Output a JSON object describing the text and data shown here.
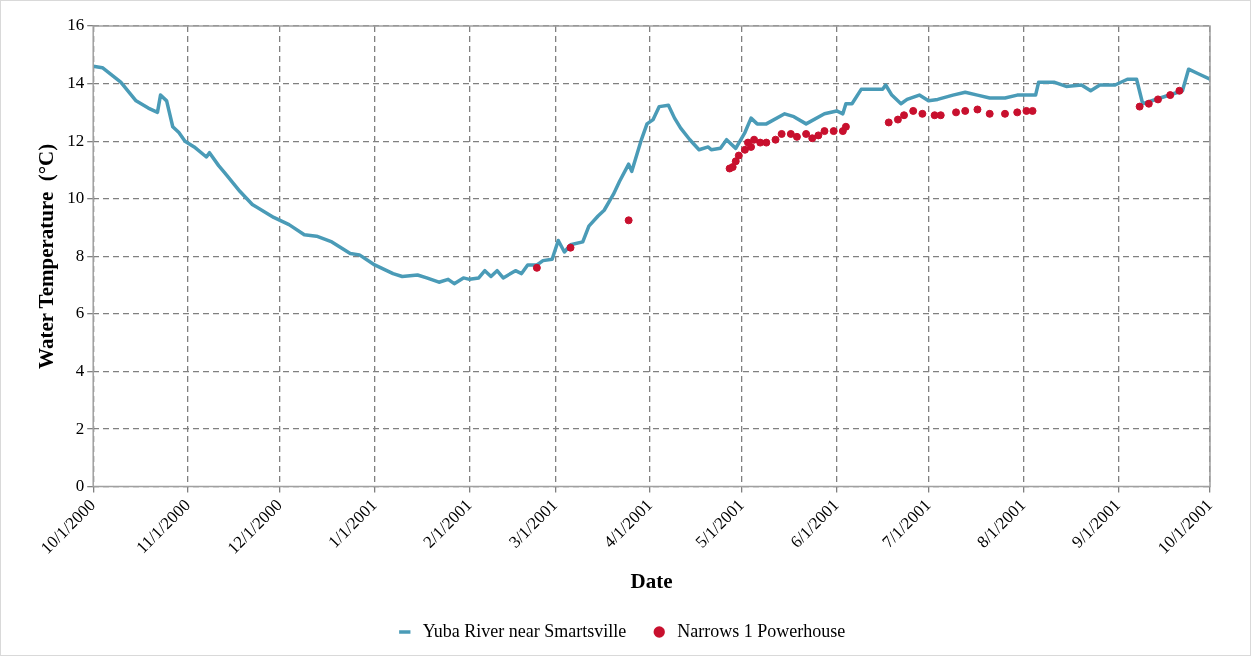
{
  "chart_data": {
    "type": "line",
    "xlabel": "Date",
    "ylabel": "Water Temperature  (°C)",
    "xlim": [
      "2000-10-01",
      "2001-10-01"
    ],
    "xticks": [
      {
        "value": "2000-10-01",
        "label": "10/1/2000"
      },
      {
        "value": "2000-11-01",
        "label": "11/1/2000"
      },
      {
        "value": "2000-12-01",
        "label": "12/1/2000"
      },
      {
        "value": "2001-01-01",
        "label": "1/1/2001"
      },
      {
        "value": "2001-02-01",
        "label": "2/1/2001"
      },
      {
        "value": "2001-03-01",
        "label": "3/1/2001"
      },
      {
        "value": "2001-04-01",
        "label": "4/1/2001"
      },
      {
        "value": "2001-05-01",
        "label": "5/1/2001"
      },
      {
        "value": "2001-06-01",
        "label": "6/1/2001"
      },
      {
        "value": "2001-07-01",
        "label": "7/1/2001"
      },
      {
        "value": "2001-08-01",
        "label": "8/1/2001"
      },
      {
        "value": "2001-09-01",
        "label": "9/1/2001"
      },
      {
        "value": "2001-10-01",
        "label": "10/1/2001"
      }
    ],
    "ylim": [
      0,
      16
    ],
    "yticks": [
      0,
      2,
      4,
      6,
      8,
      10,
      12,
      14,
      16
    ],
    "grid": true,
    "legend": "bottom",
    "series": [
      {
        "name": "Yuba River near Smartsville",
        "marker": "none",
        "color": "#4a9bb7",
        "x": [
          "2000-10-01",
          "2000-10-04",
          "2000-10-10",
          "2000-10-15",
          "2000-10-19",
          "2000-10-22",
          "2000-10-23",
          "2000-10-25",
          "2000-10-27",
          "2000-10-29",
          "2000-10-31",
          "2000-11-03",
          "2000-11-07",
          "2000-11-08",
          "2000-11-11",
          "2000-11-13",
          "2000-11-18",
          "2000-11-22",
          "2000-11-29",
          "2000-12-04",
          "2000-12-09",
          "2000-12-13",
          "2000-12-18",
          "2000-12-24",
          "2000-12-27",
          "2001-01-01",
          "2001-01-07",
          "2001-01-10",
          "2001-01-15",
          "2001-01-18",
          "2001-01-22",
          "2001-01-25",
          "2001-01-27",
          "2001-01-30",
          "2001-02-01",
          "2001-02-04",
          "2001-02-06",
          "2001-02-08",
          "2001-02-10",
          "2001-02-12",
          "2001-02-16",
          "2001-02-18",
          "2001-02-20",
          "2001-02-23",
          "2001-02-25",
          "2001-02-28",
          "2001-03-02",
          "2001-03-04",
          "2001-03-06",
          "2001-03-10",
          "2001-03-12",
          "2001-03-15",
          "2001-03-17",
          "2001-03-20",
          "2001-03-22",
          "2001-03-25",
          "2001-03-26",
          "2001-03-29",
          "2001-03-31",
          "2001-04-02",
          "2001-04-04",
          "2001-04-07",
          "2001-04-09",
          "2001-04-11",
          "2001-04-14",
          "2001-04-17",
          "2001-04-20",
          "2001-04-21",
          "2001-04-24",
          "2001-04-26",
          "2001-04-29",
          "2001-05-02",
          "2001-05-04",
          "2001-05-06",
          "2001-05-09",
          "2001-05-15",
          "2001-05-18",
          "2001-05-22",
          "2001-05-28",
          "2001-06-01",
          "2001-06-03",
          "2001-06-04",
          "2001-06-06",
          "2001-06-09",
          "2001-06-16",
          "2001-06-17",
          "2001-06-19",
          "2001-06-22",
          "2001-06-24",
          "2001-06-28",
          "2001-07-01",
          "2001-07-04",
          "2001-07-09",
          "2001-07-13",
          "2001-07-17",
          "2001-07-21",
          "2001-07-26",
          "2001-07-30",
          "2001-08-05",
          "2001-08-06",
          "2001-08-11",
          "2001-08-15",
          "2001-08-20",
          "2001-08-23",
          "2001-08-26",
          "2001-08-31",
          "2001-09-04",
          "2001-09-07",
          "2001-09-09",
          "2001-09-22",
          "2001-09-24",
          "2001-09-27",
          "2001-10-01"
        ],
        "values": [
          14.6,
          14.55,
          14.05,
          13.4,
          13.15,
          13.0,
          13.6,
          13.4,
          12.5,
          12.3,
          12.0,
          11.8,
          11.45,
          11.6,
          11.15,
          10.9,
          10.25,
          9.8,
          9.35,
          9.1,
          8.75,
          8.7,
          8.5,
          8.1,
          8.05,
          7.7,
          7.4,
          7.3,
          7.35,
          7.25,
          7.1,
          7.2,
          7.05,
          7.25,
          7.2,
          7.25,
          7.5,
          7.3,
          7.5,
          7.25,
          7.5,
          7.4,
          7.7,
          7.7,
          7.85,
          7.9,
          8.55,
          8.15,
          8.4,
          8.5,
          9.05,
          9.4,
          9.6,
          10.15,
          10.6,
          11.2,
          10.95,
          12.0,
          12.6,
          12.75,
          13.2,
          13.25,
          12.8,
          12.45,
          12.05,
          11.7,
          11.8,
          11.7,
          11.75,
          12.05,
          11.75,
          12.3,
          12.8,
          12.6,
          12.6,
          12.95,
          12.85,
          12.6,
          12.95,
          13.05,
          12.95,
          13.3,
          13.3,
          13.8,
          13.8,
          13.95,
          13.6,
          13.3,
          13.45,
          13.6,
          13.4,
          13.45,
          13.6,
          13.7,
          13.6,
          13.5,
          13.5,
          13.6,
          13.6,
          14.05,
          14.05,
          13.9,
          13.95,
          13.75,
          13.95,
          13.95,
          14.15,
          14.15,
          13.3,
          13.75,
          14.5,
          14.35,
          14.15
        ]
      },
      {
        "name": "Narrows 1 Powerhouse",
        "type": "scatter",
        "marker": "circle",
        "color": "#c8102e",
        "x": [
          "2001-02-23",
          "2001-03-06",
          "2001-03-25",
          "2001-04-27",
          "2001-04-28",
          "2001-04-29",
          "2001-04-30",
          "2001-05-02",
          "2001-05-03",
          "2001-05-04",
          "2001-05-05",
          "2001-05-07",
          "2001-05-09",
          "2001-05-12",
          "2001-05-14",
          "2001-05-17",
          "2001-05-19",
          "2001-05-22",
          "2001-05-24",
          "2001-05-26",
          "2001-05-28",
          "2001-05-31",
          "2001-06-03",
          "2001-06-04",
          "2001-06-18",
          "2001-06-21",
          "2001-06-23",
          "2001-06-26",
          "2001-06-29",
          "2001-07-03",
          "2001-07-05",
          "2001-07-10",
          "2001-07-13",
          "2001-07-17",
          "2001-07-21",
          "2001-07-26",
          "2001-07-30",
          "2001-08-02",
          "2001-08-04",
          "2001-09-08",
          "2001-09-11",
          "2001-09-14",
          "2001-09-18",
          "2001-09-21"
        ],
        "values": [
          7.6,
          8.3,
          9.25,
          11.05,
          11.1,
          11.3,
          11.5,
          11.7,
          11.95,
          11.8,
          12.05,
          11.95,
          11.95,
          12.05,
          12.25,
          12.25,
          12.15,
          12.25,
          12.1,
          12.2,
          12.35,
          12.35,
          12.35,
          12.5,
          12.65,
          12.75,
          12.9,
          13.05,
          12.95,
          12.9,
          12.9,
          13.0,
          13.05,
          13.1,
          12.95,
          12.95,
          13.0,
          13.05,
          13.05,
          13.2,
          13.3,
          13.45,
          13.6,
          13.75
        ]
      }
    ]
  }
}
